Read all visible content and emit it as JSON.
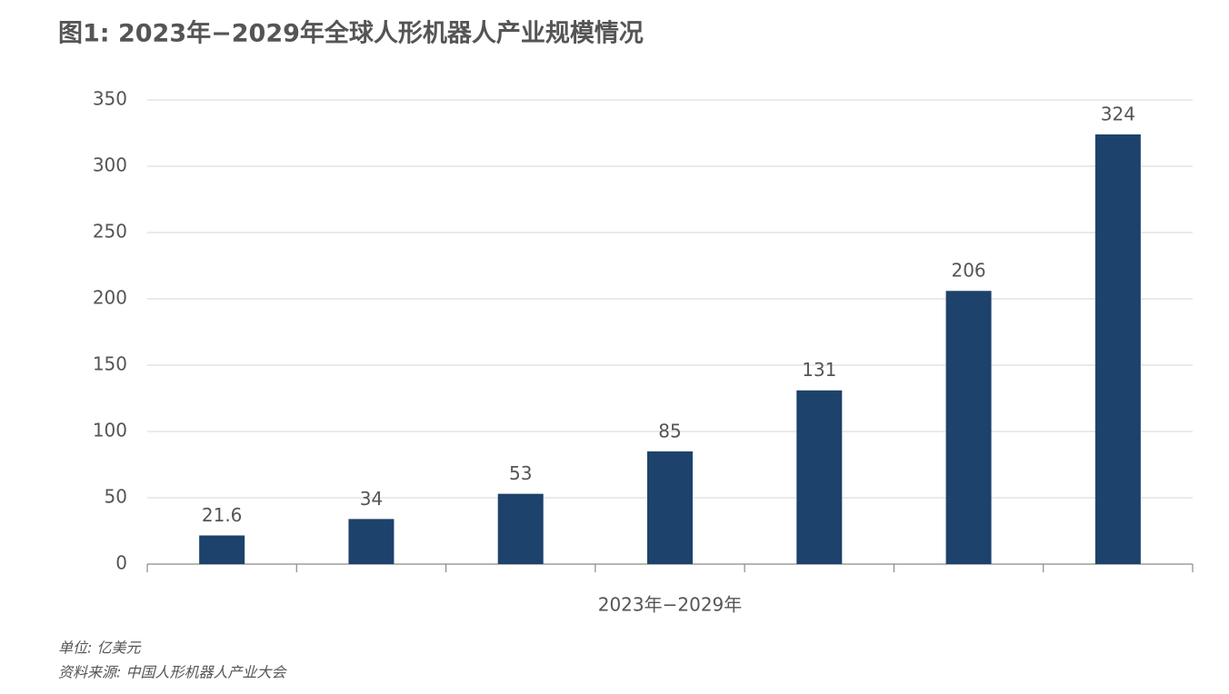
{
  "chart_data": {
    "type": "bar",
    "title": "图1: 2023年−2029年全球人形机器人产业规模情况",
    "x_label": "2023年−2029年",
    "categories": [
      null,
      null,
      null,
      null,
      null,
      null,
      null
    ],
    "values": [
      21.6,
      34,
      53,
      85,
      131,
      206,
      324
    ],
    "color": "#1d426b",
    "ylim": [
      0,
      350
    ],
    "yticks": [
      0,
      50,
      100,
      150,
      200,
      250,
      300,
      350
    ],
    "grid": true,
    "unit_note": "单位: 亿美元",
    "source_note": "资料来源: 中国人形机器人产业大会"
  }
}
